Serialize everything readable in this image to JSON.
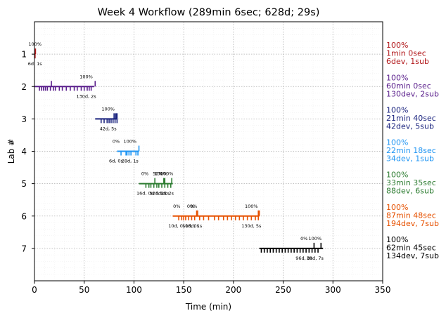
{
  "chart_data": {
    "type": "timeline",
    "title": "Week 4 Workflow (289min 6sec; 628d; 29s)",
    "xlabel": "Time (min)",
    "ylabel": "Lab #",
    "xlim": [
      0,
      350
    ],
    "ylim": [
      8,
      0
    ],
    "xticks": [
      0,
      50,
      100,
      150,
      200,
      250,
      300,
      350
    ],
    "yticks": [
      1,
      2,
      3,
      4,
      5,
      6,
      7
    ],
    "grid": true,
    "minor_grid": true,
    "labs": [
      {
        "lab": 1,
        "color": "#b2181b",
        "start": 0.0,
        "end": 1.0,
        "summary": [
          "100%",
          "1min 0sec",
          "6dev, 1sub"
        ],
        "ticks_down": [
          0.3,
          0.6
        ],
        "ticks_up": [
          1.0
        ],
        "annotations": [
          {
            "x": 0.5,
            "top": "100%",
            "bottom": "6d, 1s"
          }
        ]
      },
      {
        "lab": 2,
        "color": "#5a1f8c",
        "start": 0.0,
        "end": 60.0,
        "summary": [
          "100%",
          "60min 0sec",
          "130dev, 2sub"
        ],
        "ticks_down": [
          5,
          7,
          9,
          11,
          13,
          16,
          19,
          21,
          25,
          28,
          32,
          36,
          40,
          43,
          47,
          50,
          53,
          55,
          57
        ],
        "ticks_up": [
          17,
          61
        ],
        "annotations": [
          {
            "x": 52,
            "top": "100%",
            "bottom": "130d, 2s"
          }
        ]
      },
      {
        "lab": 3,
        "color": "#1a237e",
        "start": 61.0,
        "end": 83.0,
        "summary": [
          "100%",
          "21min 40sec",
          "42dev, 5sub"
        ],
        "ticks_down": [
          67,
          70,
          73,
          75,
          77,
          79,
          81,
          83
        ],
        "ticks_up": [
          80,
          81.5,
          82.5,
          83
        ],
        "annotations": [
          {
            "x": 74,
            "top": "100%",
            "bottom": "42d, 5s"
          }
        ]
      },
      {
        "lab": 4,
        "color": "#2196f3",
        "start": 83.0,
        "end": 105.0,
        "summary": [
          "100%",
          "22min 18sec",
          "34dev, 1sub"
        ],
        "ticks_down": [
          87,
          92,
          93,
          95,
          97,
          102,
          104
        ],
        "ticks_up": [
          105
        ],
        "annotations": [
          {
            "x": 82,
            "top": "0%",
            "bottom": "6d, 0s"
          },
          {
            "x": 96,
            "top": "100%",
            "bottom": "28d, 1s"
          }
        ]
      },
      {
        "lab": 5,
        "color": "#2e7d32",
        "start": 105.0,
        "end": 139.0,
        "summary": [
          "100%",
          "33min 35sec",
          "88dev, 6sub"
        ],
        "ticks_down": [
          112,
          115,
          117,
          120,
          123,
          125,
          128,
          131,
          134,
          137
        ],
        "ticks_up": [
          121,
          130,
          131,
          138
        ],
        "annotations": [
          {
            "x": 111,
            "top": "0%",
            "bottom": "16d, 0s"
          },
          {
            "x": 124,
            "top": "50%",
            "bottom": "51d, 1s"
          },
          {
            "x": 127,
            "top": "100%",
            "bottom": "21d, 2s"
          },
          {
            "x": 133,
            "top": "100%",
            "bottom": "4d, 2s"
          }
        ]
      },
      {
        "lab": 6,
        "color": "#e65100",
        "start": 139.0,
        "end": 226.0,
        "summary": [
          "100%",
          "87min 48sec",
          "194dev, 7sub"
        ],
        "ticks_down": [
          145,
          148,
          150,
          152,
          155,
          158,
          161,
          166,
          170,
          175,
          181,
          185,
          190,
          194,
          198,
          202,
          206,
          210,
          214,
          218,
          222,
          225
        ],
        "ticks_up": [
          163,
          164,
          225,
          226
        ],
        "annotations": [
          {
            "x": 143,
            "top": "0%",
            "bottom": "10d, 0s"
          },
          {
            "x": 157,
            "top": "0%",
            "bottom": "10d, 0s"
          },
          {
            "x": 160,
            "top": "0%",
            "bottom": "18d, 1s"
          },
          {
            "x": 218,
            "top": "100%",
            "bottom": "130d, 5s"
          }
        ]
      },
      {
        "lab": 7,
        "color": "#000000",
        "start": 226.0,
        "end": 290.0,
        "summary": [
          "100%",
          "62min 45sec",
          "134dev, 7sub"
        ],
        "ticks_down": [
          228,
          231,
          234,
          237,
          240,
          243,
          246,
          249,
          252,
          255,
          258,
          261,
          264,
          267,
          270,
          273,
          276,
          279,
          282,
          285
        ],
        "ticks_up": [
          281,
          288
        ],
        "annotations": [
          {
            "x": 271,
            "top": "0%",
            "bottom": "96d, 0s"
          },
          {
            "x": 282,
            "top": "100%",
            "bottom": "38d, 7s"
          }
        ]
      }
    ]
  }
}
